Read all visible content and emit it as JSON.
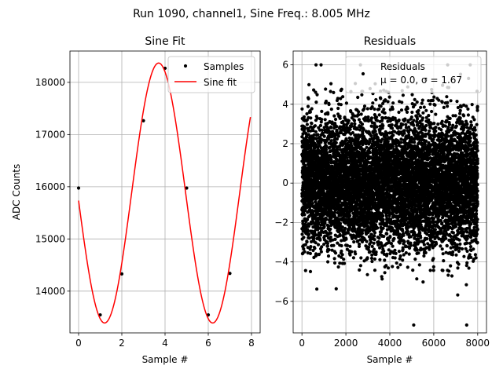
{
  "figure": {
    "suptitle": "Run 1090, channel1, Sine Freq.: 8.005 MHz"
  },
  "chart_data": [
    {
      "type": "scatter",
      "title": "Sine Fit",
      "xlabel": "Sample #",
      "ylabel": "ADC Counts",
      "xlim": [
        -0.4,
        8.4
      ],
      "ylim": [
        13200,
        18600
      ],
      "xticks": [
        "0",
        "2",
        "4",
        "6",
        "8"
      ],
      "xtick_values": [
        0,
        2,
        4,
        6,
        8
      ],
      "yticks": [
        "14000",
        "15000",
        "16000",
        "17000",
        "18000"
      ],
      "ytick_values": [
        14000,
        15000,
        16000,
        17000,
        18000
      ],
      "grid": true,
      "legend": {
        "placement": "top-right",
        "entries": [
          "Samples",
          "Sine fit"
        ]
      },
      "series": [
        {
          "name": "Samples",
          "kind": "scatter",
          "color": "#000000",
          "x": [
            0,
            1,
            2,
            3,
            4,
            5,
            6,
            7
          ],
          "y": [
            15975,
            13545,
            14330,
            17265,
            18270,
            15975,
            13545,
            14340
          ]
        },
        {
          "name": "Sine fit",
          "kind": "line",
          "color": "#ff0000",
          "function": {
            "offset": 15880,
            "amplitude": 2490,
            "period_samples": 5,
            "phase": 3.2
          },
          "x_range": [
            0,
            7.95
          ]
        }
      ]
    },
    {
      "type": "scatter",
      "title": "Residuals",
      "xlabel": "Sample #",
      "ylabel": "",
      "xlim": [
        -400,
        8400
      ],
      "ylim": [
        -7.6,
        6.7
      ],
      "xticks": [
        "0",
        "2000",
        "4000",
        "6000",
        "8000"
      ],
      "xtick_values": [
        0,
        2000,
        4000,
        6000,
        8000
      ],
      "yticks": [
        "−6",
        "−4",
        "−2",
        "0",
        "2",
        "4",
        "6"
      ],
      "ytick_values": [
        -6,
        -4,
        -2,
        0,
        2,
        4,
        6
      ],
      "grid": true,
      "legend": {
        "placement": "top-right",
        "entries": [
          "Residuals",
          "μ = 0.0, σ = 1.67"
        ]
      },
      "series": [
        {
          "name": "Residuals",
          "kind": "scatter",
          "color": "#000000",
          "n_points": 8000,
          "x_range": [
            0,
            7999
          ],
          "mean": 0.0,
          "std": 1.67,
          "min": -7.2,
          "max": 6.0
        }
      ]
    }
  ]
}
